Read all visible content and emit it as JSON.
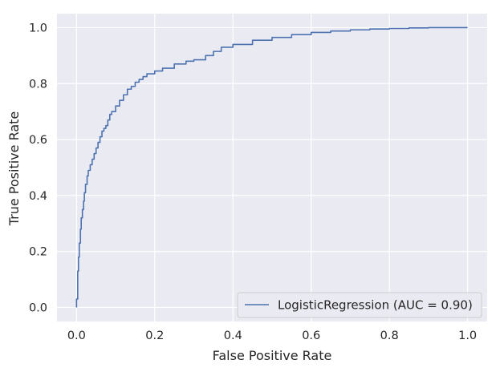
{
  "chart_data": {
    "type": "line",
    "title": "",
    "xlabel": "False Positive Rate",
    "ylabel": "True Positive Rate",
    "xlim": [
      -0.05,
      1.05
    ],
    "ylim": [
      -0.05,
      1.05
    ],
    "xticks": [
      0.0,
      0.2,
      0.4,
      0.6,
      0.8,
      1.0
    ],
    "yticks": [
      0.0,
      0.2,
      0.4,
      0.6,
      0.8,
      1.0
    ],
    "xtick_labels": [
      "0.0",
      "0.2",
      "0.4",
      "0.6",
      "0.8",
      "1.0"
    ],
    "ytick_labels": [
      "0.0",
      "0.2",
      "0.4",
      "0.6",
      "0.8",
      "1.0"
    ],
    "grid": true,
    "legend_position": "lower-right",
    "background_color": "#eaeaf2",
    "series": [
      {
        "name": "LogisticRegression (AUC = 0.90)",
        "color": "#4c72b0",
        "x": [
          0.0,
          0.0,
          0.003,
          0.003,
          0.005,
          0.007,
          0.01,
          0.012,
          0.015,
          0.018,
          0.02,
          0.023,
          0.027,
          0.03,
          0.035,
          0.04,
          0.045,
          0.05,
          0.055,
          0.06,
          0.065,
          0.07,
          0.075,
          0.08,
          0.085,
          0.09,
          0.1,
          0.11,
          0.12,
          0.13,
          0.14,
          0.15,
          0.16,
          0.17,
          0.18,
          0.2,
          0.22,
          0.25,
          0.28,
          0.3,
          0.33,
          0.35,
          0.37,
          0.4,
          0.45,
          0.5,
          0.55,
          0.6,
          0.65,
          0.7,
          0.75,
          0.8,
          0.85,
          0.9,
          1.0
        ],
        "y": [
          0.0,
          0.03,
          0.05,
          0.13,
          0.18,
          0.23,
          0.28,
          0.32,
          0.35,
          0.38,
          0.41,
          0.44,
          0.47,
          0.49,
          0.51,
          0.53,
          0.55,
          0.57,
          0.59,
          0.61,
          0.63,
          0.64,
          0.65,
          0.67,
          0.69,
          0.7,
          0.72,
          0.74,
          0.76,
          0.78,
          0.79,
          0.805,
          0.815,
          0.825,
          0.835,
          0.845,
          0.855,
          0.87,
          0.88,
          0.885,
          0.9,
          0.915,
          0.93,
          0.94,
          0.955,
          0.965,
          0.975,
          0.983,
          0.988,
          0.992,
          0.995,
          0.997,
          0.999,
          1.0,
          1.0
        ]
      }
    ]
  }
}
